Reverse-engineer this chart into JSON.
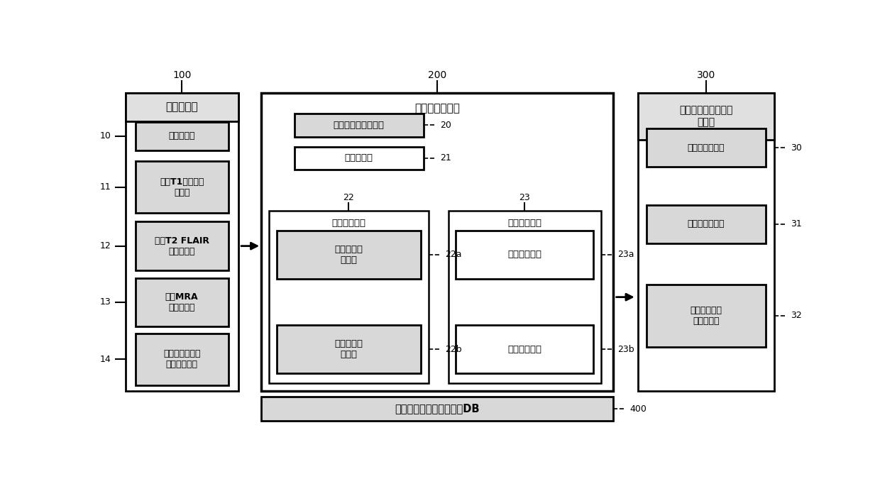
{
  "bg_color": "#ffffff",
  "block100_title": "图像处理部",
  "block100_label": "100",
  "block100_boxes": [
    {
      "label": "10",
      "text": "图像接收部"
    },
    {
      "label": "11",
      "text": "三维T1加权图像\n获取部"
    },
    {
      "label": "12",
      "text": "二维T2 FLAIR\n图像获取部"
    },
    {
      "label": "13",
      "text": "三维MRA\n图像获取部"
    },
    {
      "label": "14",
      "text": "四维相位对比流\n动图像获取部"
    }
  ],
  "block200_title": "复合图像分析部",
  "block200_label": "200",
  "top_boxes": [
    {
      "label": "20",
      "text": "诊断对象疾病选择部",
      "fill": "#d8d8d8"
    },
    {
      "label": "21",
      "text": "脑区设定部",
      "fill": "#ffffff"
    }
  ],
  "brain_tissue_title": "脑组织分析部",
  "brain_tissue_label": "22",
  "brain_tissue_boxes": [
    {
      "label": "22a",
      "text": "脑结构中心\n分析部"
    },
    {
      "label": "22b",
      "text": "脑功能强调\n分析部"
    }
  ],
  "brain_vessel_title": "脑血管分析部",
  "brain_vessel_label": "23",
  "brain_vessel_boxes": [
    {
      "label": "23a",
      "text": "小血管分析部"
    },
    {
      "label": "23b",
      "text": "大血管分析部"
    }
  ],
  "block300_title": "不同个人诊断及结果\n输出部",
  "block300_label": "300",
  "block300_boxes": [
    {
      "label": "30",
      "text": "脑体积值输出部"
    },
    {
      "label": "31",
      "text": "血管等级输出部"
    },
    {
      "label": "32",
      "text": "诊断对象疾病\n状态输出部"
    }
  ],
  "block400_text": "不同年龄段的韩国人数据DB",
  "block400_label": "400"
}
